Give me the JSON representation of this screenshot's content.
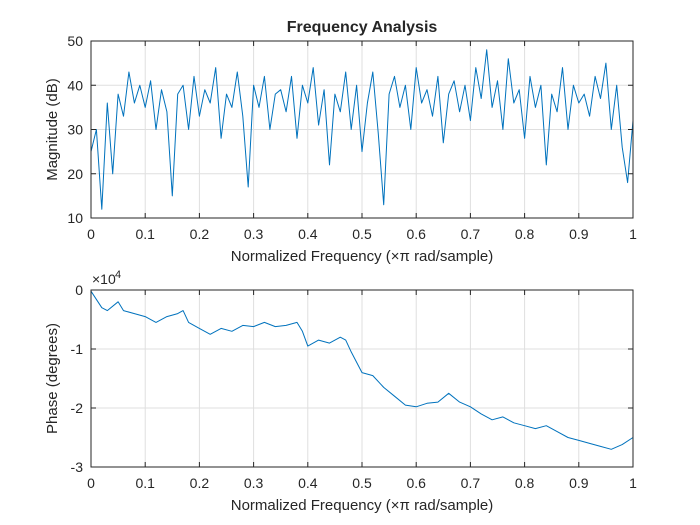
{
  "title": "Frequency Analysis",
  "colors": {
    "series": "#0072bd",
    "grid": "#dfdfdf",
    "axis": "#262626"
  },
  "chart_data": [
    {
      "type": "line",
      "title": "Frequency Analysis",
      "xlabel": "Normalized Frequency  (×π rad/sample)",
      "ylabel": "Magnitude (dB)",
      "xlim": [
        0,
        1
      ],
      "ylim": [
        10,
        50
      ],
      "grid": true,
      "xticks": [
        0,
        0.1,
        0.2,
        0.3,
        0.4,
        0.5,
        0.6,
        0.7,
        0.8,
        0.9,
        1
      ],
      "xtick_labels": [
        "0",
        "0.1",
        "0.2",
        "0.3",
        "0.4",
        "0.5",
        "0.6",
        "0.7",
        "0.8",
        "0.9",
        "1"
      ],
      "yticks": [
        10,
        20,
        30,
        40,
        50
      ],
      "ytick_labels": [
        "10",
        "20",
        "30",
        "40",
        "50"
      ],
      "series": [
        {
          "x": [
            0,
            0.01,
            0.02,
            0.03,
            0.04,
            0.05,
            0.06,
            0.07,
            0.08,
            0.09,
            0.1,
            0.11,
            0.12,
            0.13,
            0.14,
            0.15,
            0.16,
            0.17,
            0.18,
            0.19,
            0.2,
            0.21,
            0.22,
            0.23,
            0.24,
            0.25,
            0.26,
            0.27,
            0.28,
            0.29,
            0.3,
            0.31,
            0.32,
            0.33,
            0.34,
            0.35,
            0.36,
            0.37,
            0.38,
            0.39,
            0.4,
            0.41,
            0.42,
            0.43,
            0.44,
            0.45,
            0.46,
            0.47,
            0.48,
            0.49,
            0.5,
            0.51,
            0.52,
            0.53,
            0.54,
            0.55,
            0.56,
            0.57,
            0.58,
            0.59,
            0.6,
            0.61,
            0.62,
            0.63,
            0.64,
            0.65,
            0.66,
            0.67,
            0.68,
            0.69,
            0.7,
            0.71,
            0.72,
            0.73,
            0.74,
            0.75,
            0.76,
            0.77,
            0.78,
            0.79,
            0.8,
            0.81,
            0.82,
            0.83,
            0.84,
            0.85,
            0.86,
            0.87,
            0.88,
            0.89,
            0.9,
            0.91,
            0.92,
            0.93,
            0.94,
            0.95,
            0.96,
            0.97,
            0.98,
            0.99,
            1.0
          ],
          "values": [
            25,
            30,
            12,
            36,
            20,
            38,
            33,
            43,
            36,
            40,
            35,
            41,
            30,
            39,
            34,
            15,
            38,
            40,
            30,
            42,
            33,
            39,
            36,
            44,
            28,
            38,
            35,
            43,
            33,
            17,
            40,
            35,
            42,
            30,
            38,
            39,
            34,
            42,
            28,
            40,
            36,
            44,
            31,
            39,
            22,
            38,
            34,
            43,
            30,
            40,
            25,
            36,
            43,
            29,
            13,
            38,
            42,
            35,
            40,
            30,
            44,
            36,
            39,
            33,
            42,
            27,
            38,
            41,
            34,
            40,
            32,
            44,
            37,
            48,
            35,
            41,
            30,
            46,
            36,
            39,
            28,
            42,
            35,
            40,
            22,
            38,
            34,
            44,
            30,
            40,
            36,
            38,
            33,
            42,
            37,
            45,
            30,
            40,
            26,
            18,
            32
          ]
        }
      ]
    },
    {
      "type": "line",
      "xlabel": "Normalized Frequency  (×π rad/sample)",
      "ylabel": "Phase (degrees)",
      "y_exponent_label": "×10",
      "y_exponent_power": "4",
      "xlim": [
        0,
        1
      ],
      "ylim": [
        -3,
        0
      ],
      "grid": true,
      "xticks": [
        0,
        0.1,
        0.2,
        0.3,
        0.4,
        0.5,
        0.6,
        0.7,
        0.8,
        0.9,
        1
      ],
      "xtick_labels": [
        "0",
        "0.1",
        "0.2",
        "0.3",
        "0.4",
        "0.5",
        "0.6",
        "0.7",
        "0.8",
        "0.9",
        "1"
      ],
      "yticks": [
        -3,
        -2,
        -1,
        0
      ],
      "ytick_labels": [
        "-3",
        "-2",
        "-1",
        "0"
      ],
      "series": [
        {
          "x": [
            0,
            0.02,
            0.03,
            0.05,
            0.06,
            0.08,
            0.1,
            0.12,
            0.14,
            0.16,
            0.17,
            0.18,
            0.2,
            0.22,
            0.24,
            0.26,
            0.28,
            0.3,
            0.32,
            0.34,
            0.36,
            0.38,
            0.39,
            0.4,
            0.42,
            0.44,
            0.46,
            0.47,
            0.48,
            0.5,
            0.52,
            0.54,
            0.56,
            0.58,
            0.6,
            0.62,
            0.64,
            0.66,
            0.68,
            0.7,
            0.72,
            0.74,
            0.76,
            0.78,
            0.8,
            0.82,
            0.84,
            0.86,
            0.88,
            0.9,
            0.92,
            0.94,
            0.96,
            0.98,
            1.0
          ],
          "values": [
            -0.02,
            -0.3,
            -0.35,
            -0.2,
            -0.35,
            -0.4,
            -0.45,
            -0.55,
            -0.45,
            -0.4,
            -0.35,
            -0.55,
            -0.65,
            -0.75,
            -0.65,
            -0.7,
            -0.6,
            -0.62,
            -0.55,
            -0.62,
            -0.6,
            -0.55,
            -0.7,
            -0.95,
            -0.85,
            -0.9,
            -0.8,
            -0.85,
            -1.05,
            -1.4,
            -1.45,
            -1.65,
            -1.8,
            -1.95,
            -1.98,
            -1.92,
            -1.9,
            -1.75,
            -1.9,
            -1.98,
            -2.1,
            -2.2,
            -2.15,
            -2.25,
            -2.3,
            -2.35,
            -2.3,
            -2.4,
            -2.5,
            -2.55,
            -2.6,
            -2.65,
            -2.7,
            -2.62,
            -2.5
          ]
        }
      ]
    }
  ]
}
